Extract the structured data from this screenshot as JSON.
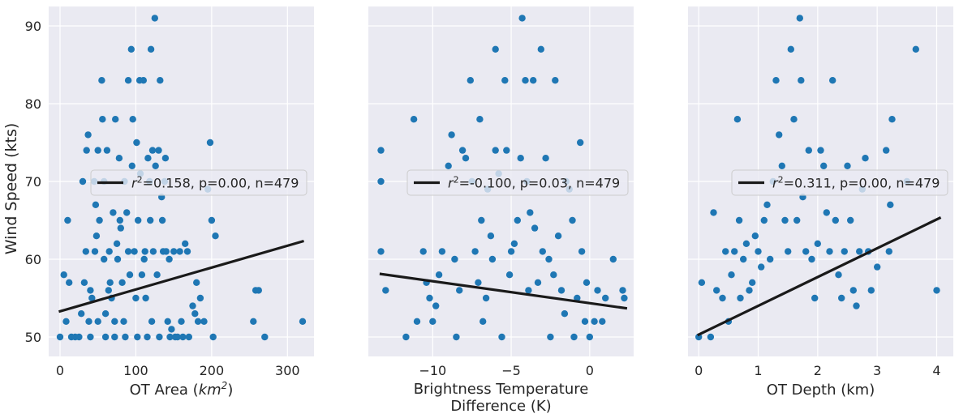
{
  "colors": {
    "background": "#eaeaf2",
    "grid": "#ffffff",
    "points": "#1f77b4",
    "fit_line": "#1a1a1a",
    "legend_bg": "#eaeaf2",
    "legend_border": "#cccccc"
  },
  "shared_ylabel": "Wind Speed (kts)",
  "shared_yticks": [
    "50",
    "60",
    "70",
    "80",
    "90"
  ],
  "chart_data": [
    {
      "type": "scatter",
      "xlabel": "OT Area ($km^2$)",
      "xlabel_parts": [
        "OT Area (",
        "km",
        "2",
        ")"
      ],
      "ylabel": "Wind Speed (kts)",
      "xlim": [
        -15,
        335
      ],
      "ylim": [
        47.5,
        92.5
      ],
      "xticks": [
        0,
        100,
        200,
        300
      ],
      "xtick_labels": [
        "0",
        "100",
        "200",
        "300"
      ],
      "yticks": [
        50,
        60,
        70,
        80,
        90
      ],
      "grid": true,
      "legend": {
        "placement": "center-right",
        "label_r2": "=0.158, p=0.00, n=479"
      },
      "fit_line": {
        "x": [
          0,
          320
        ],
        "y": [
          53.3,
          62.3
        ]
      },
      "points": [
        [
          0,
          50
        ],
        [
          5,
          58
        ],
        [
          8,
          52
        ],
        [
          10,
          65
        ],
        [
          12,
          57
        ],
        [
          15,
          50
        ],
        [
          20,
          50
        ],
        [
          25,
          50
        ],
        [
          28,
          53
        ],
        [
          30,
          70
        ],
        [
          32,
          57
        ],
        [
          34,
          61
        ],
        [
          35,
          74
        ],
        [
          37,
          76
        ],
        [
          38,
          52
        ],
        [
          40,
          50
        ],
        [
          40,
          56
        ],
        [
          42,
          55
        ],
        [
          45,
          70
        ],
        [
          46,
          61
        ],
        [
          47,
          67
        ],
        [
          48,
          63
        ],
        [
          50,
          74
        ],
        [
          50,
          52
        ],
        [
          52,
          65
        ],
        [
          55,
          83
        ],
        [
          56,
          78
        ],
        [
          58,
          70
        ],
        [
          58,
          60
        ],
        [
          60,
          50
        ],
        [
          60,
          53
        ],
        [
          62,
          74
        ],
        [
          64,
          56
        ],
        [
          65,
          61
        ],
        [
          66,
          57
        ],
        [
          68,
          55
        ],
        [
          70,
          66
        ],
        [
          72,
          50
        ],
        [
          72,
          52
        ],
        [
          73,
          78
        ],
        [
          75,
          62
        ],
        [
          76,
          60
        ],
        [
          78,
          73
        ],
        [
          79,
          65
        ],
        [
          80,
          64
        ],
        [
          82,
          57
        ],
        [
          84,
          52
        ],
        [
          85,
          70
        ],
        [
          86,
          50
        ],
        [
          88,
          66
        ],
        [
          90,
          83
        ],
        [
          90,
          61
        ],
        [
          92,
          58
        ],
        [
          94,
          87
        ],
        [
          95,
          72
        ],
        [
          96,
          78
        ],
        [
          98,
          61
        ],
        [
          100,
          55
        ],
        [
          101,
          75
        ],
        [
          102,
          50
        ],
        [
          103,
          65
        ],
        [
          105,
          83
        ],
        [
          106,
          71
        ],
        [
          108,
          58
        ],
        [
          110,
          83
        ],
        [
          111,
          60
        ],
        [
          112,
          61
        ],
        [
          113,
          55
        ],
        [
          115,
          50
        ],
        [
          116,
          73
        ],
        [
          118,
          70
        ],
        [
          119,
          65
        ],
        [
          120,
          87
        ],
        [
          121,
          52
        ],
        [
          122,
          74
        ],
        [
          123,
          61
        ],
        [
          125,
          91
        ],
        [
          126,
          72
        ],
        [
          128,
          58
        ],
        [
          130,
          74
        ],
        [
          131,
          50
        ],
        [
          132,
          83
        ],
        [
          134,
          68
        ],
        [
          135,
          65
        ],
        [
          136,
          61
        ],
        [
          138,
          70
        ],
        [
          139,
          73
        ],
        [
          140,
          61
        ],
        [
          142,
          52
        ],
        [
          144,
          60
        ],
        [
          145,
          50
        ],
        [
          147,
          51
        ],
        [
          150,
          61
        ],
        [
          152,
          50
        ],
        [
          155,
          50
        ],
        [
          158,
          61
        ],
        [
          160,
          52
        ],
        [
          162,
          50
        ],
        [
          165,
          62
        ],
        [
          168,
          61
        ],
        [
          170,
          50
        ],
        [
          175,
          54
        ],
        [
          178,
          53
        ],
        [
          180,
          57
        ],
        [
          182,
          52
        ],
        [
          185,
          55
        ],
        [
          190,
          52
        ],
        [
          195,
          69
        ],
        [
          198,
          75
        ],
        [
          200,
          65
        ],
        [
          202,
          50
        ],
        [
          205,
          63
        ],
        [
          255,
          52
        ],
        [
          258,
          56
        ],
        [
          262,
          56
        ],
        [
          270,
          50
        ],
        [
          320,
          52
        ]
      ]
    },
    {
      "type": "scatter",
      "xlabel_lines": [
        "Brightness Temperature",
        "Difference (K)"
      ],
      "ylabel": "",
      "xlim": [
        -14.1,
        2.8
      ],
      "ylim": [
        47.5,
        92.5
      ],
      "xticks": [
        -10,
        -5,
        0
      ],
      "xtick_labels": [
        "−10",
        "−5",
        "0"
      ],
      "yticks": [
        50,
        60,
        70,
        80,
        90
      ],
      "grid": true,
      "legend": {
        "placement": "center-right",
        "label_r2": "=-0.100, p=0.03, n=479"
      },
      "fit_line": {
        "x": [
          -13.3,
          2.3
        ],
        "y": [
          58.1,
          53.7
        ]
      },
      "points": [
        [
          -13.3,
          74
        ],
        [
          -13.3,
          70
        ],
        [
          -13.3,
          61
        ],
        [
          -13.0,
          56
        ],
        [
          -11.7,
          50
        ],
        [
          -11.2,
          78
        ],
        [
          -11.0,
          52
        ],
        [
          -10.6,
          61
        ],
        [
          -10.4,
          57
        ],
        [
          -10.2,
          55
        ],
        [
          -10.0,
          52
        ],
        [
          -9.8,
          54
        ],
        [
          -9.6,
          58
        ],
        [
          -9.4,
          61
        ],
        [
          -9.0,
          72
        ],
        [
          -8.8,
          76
        ],
        [
          -8.6,
          60
        ],
        [
          -8.5,
          50
        ],
        [
          -8.3,
          56
        ],
        [
          -8.1,
          74
        ],
        [
          -7.9,
          73
        ],
        [
          -7.6,
          83
        ],
        [
          -7.5,
          70
        ],
        [
          -7.3,
          61
        ],
        [
          -7.1,
          57
        ],
        [
          -7.0,
          78
        ],
        [
          -6.9,
          65
        ],
        [
          -6.8,
          52
        ],
        [
          -6.6,
          55
        ],
        [
          -6.5,
          69
        ],
        [
          -6.3,
          63
        ],
        [
          -6.2,
          60
        ],
        [
          -6.0,
          87
        ],
        [
          -6.0,
          74
        ],
        [
          -5.8,
          71
        ],
        [
          -5.6,
          50
        ],
        [
          -5.4,
          83
        ],
        [
          -5.3,
          74
        ],
        [
          -5.1,
          58
        ],
        [
          -5.0,
          61
        ],
        [
          -4.8,
          62
        ],
        [
          -4.6,
          65
        ],
        [
          -4.4,
          73
        ],
        [
          -4.3,
          91
        ],
        [
          -4.1,
          83
        ],
        [
          -4.0,
          70
        ],
        [
          -3.9,
          56
        ],
        [
          -3.8,
          66
        ],
        [
          -3.6,
          83
        ],
        [
          -3.5,
          64
        ],
        [
          -3.3,
          57
        ],
        [
          -3.1,
          87
        ],
        [
          -3.0,
          61
        ],
        [
          -2.8,
          73
        ],
        [
          -2.6,
          60
        ],
        [
          -2.5,
          50
        ],
        [
          -2.3,
          58
        ],
        [
          -2.2,
          83
        ],
        [
          -2.0,
          63
        ],
        [
          -1.8,
          56
        ],
        [
          -1.6,
          53
        ],
        [
          -1.5,
          70
        ],
        [
          -1.3,
          69
        ],
        [
          -1.1,
          65
        ],
        [
          -1.0,
          50
        ],
        [
          -0.8,
          55
        ],
        [
          -0.6,
          75
        ],
        [
          -0.5,
          61
        ],
        [
          -0.3,
          52
        ],
        [
          -0.2,
          57
        ],
        [
          0.0,
          50
        ],
        [
          0.3,
          52
        ],
        [
          0.5,
          56
        ],
        [
          0.8,
          52
        ],
        [
          1.0,
          55
        ],
        [
          1.5,
          60
        ],
        [
          2.1,
          56
        ],
        [
          2.2,
          55
        ]
      ]
    },
    {
      "type": "scatter",
      "xlabel": "OT Depth (km)",
      "ylabel": "",
      "xlim": [
        -0.18,
        4.28
      ],
      "ylim": [
        47.5,
        92.5
      ],
      "xticks": [
        0,
        1,
        2,
        3,
        4
      ],
      "xtick_labels": [
        "0",
        "1",
        "2",
        "3",
        "4"
      ],
      "yticks": [
        50,
        60,
        70,
        80,
        90
      ],
      "grid": true,
      "legend": {
        "placement": "center-right",
        "label_r2": "=0.311, p=0.00, n=479"
      },
      "fit_line": {
        "x": [
          0.0,
          4.05
        ],
        "y": [
          50.3,
          65.3
        ]
      },
      "points": [
        [
          0.0,
          50
        ],
        [
          0.05,
          57
        ],
        [
          0.2,
          50
        ],
        [
          0.25,
          66
        ],
        [
          0.3,
          56
        ],
        [
          0.4,
          55
        ],
        [
          0.45,
          61
        ],
        [
          0.5,
          52
        ],
        [
          0.55,
          58
        ],
        [
          0.6,
          61
        ],
        [
          0.65,
          78
        ],
        [
          0.68,
          65
        ],
        [
          0.7,
          55
        ],
        [
          0.75,
          60
        ],
        [
          0.8,
          62
        ],
        [
          0.85,
          56
        ],
        [
          0.9,
          57
        ],
        [
          0.95,
          63
        ],
        [
          1.0,
          61
        ],
        [
          1.05,
          59
        ],
        [
          1.1,
          65
        ],
        [
          1.15,
          67
        ],
        [
          1.2,
          60
        ],
        [
          1.25,
          70
        ],
        [
          1.3,
          83
        ],
        [
          1.35,
          76
        ],
        [
          1.4,
          72
        ],
        [
          1.45,
          65
        ],
        [
          1.5,
          61
        ],
        [
          1.55,
          87
        ],
        [
          1.6,
          78
        ],
        [
          1.65,
          65
        ],
        [
          1.7,
          91
        ],
        [
          1.72,
          83
        ],
        [
          1.75,
          68
        ],
        [
          1.8,
          61
        ],
        [
          1.85,
          74
        ],
        [
          1.9,
          60
        ],
        [
          1.95,
          55
        ],
        [
          2.0,
          62
        ],
        [
          2.05,
          74
        ],
        [
          2.1,
          72
        ],
        [
          2.15,
          66
        ],
        [
          2.2,
          61
        ],
        [
          2.25,
          83
        ],
        [
          2.3,
          65
        ],
        [
          2.35,
          58
        ],
        [
          2.4,
          55
        ],
        [
          2.45,
          61
        ],
        [
          2.5,
          72
        ],
        [
          2.55,
          65
        ],
        [
          2.6,
          56
        ],
        [
          2.65,
          54
        ],
        [
          2.7,
          61
        ],
        [
          2.75,
          69
        ],
        [
          2.8,
          73
        ],
        [
          2.85,
          61
        ],
        [
          2.9,
          56
        ],
        [
          3.0,
          59
        ],
        [
          3.15,
          74
        ],
        [
          3.2,
          61
        ],
        [
          3.25,
          78
        ],
        [
          3.22,
          67
        ],
        [
          3.5,
          70
        ],
        [
          3.65,
          87
        ],
        [
          4.0,
          56
        ]
      ]
    }
  ]
}
